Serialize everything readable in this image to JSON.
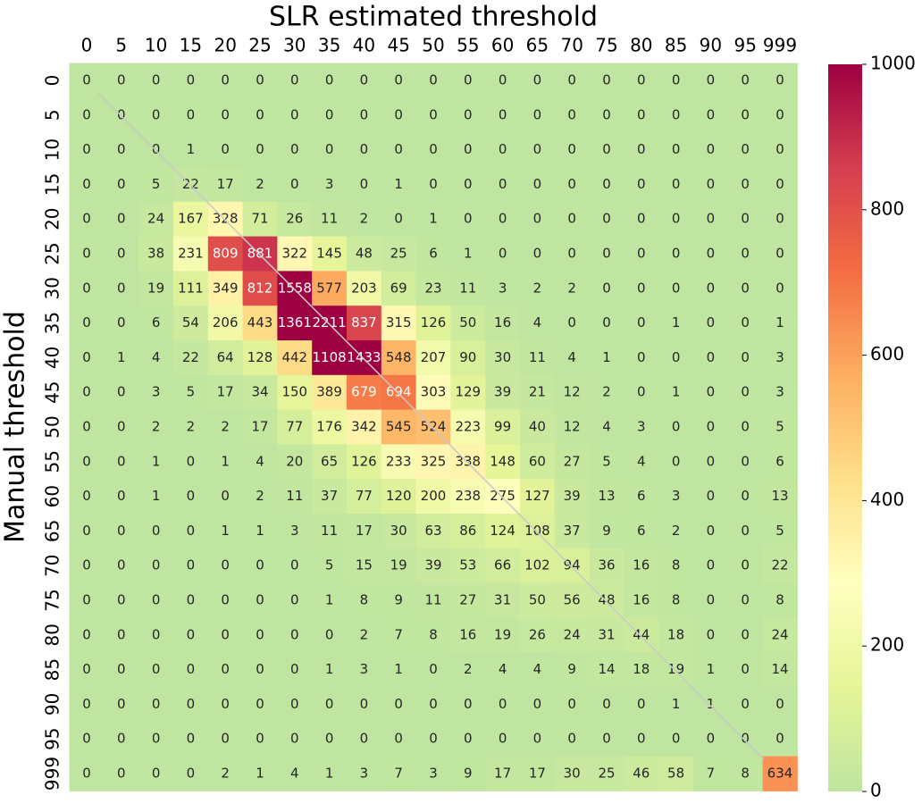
{
  "chart_data": {
    "type": "heatmap",
    "xlabel": "SLR estimated threshold",
    "ylabel": "Manual threshold",
    "x_categories": [
      "0",
      "5",
      "10",
      "15",
      "20",
      "25",
      "30",
      "35",
      "40",
      "45",
      "50",
      "55",
      "60",
      "65",
      "70",
      "75",
      "80",
      "85",
      "90",
      "95",
      "999"
    ],
    "y_categories": [
      "0",
      "5",
      "10",
      "15",
      "20",
      "25",
      "30",
      "35",
      "40",
      "45",
      "50",
      "55",
      "60",
      "65",
      "70",
      "75",
      "80",
      "85",
      "90",
      "95",
      "999"
    ],
    "values": [
      [
        0,
        0,
        0,
        0,
        0,
        0,
        0,
        0,
        0,
        0,
        0,
        0,
        0,
        0,
        0,
        0,
        0,
        0,
        0,
        0,
        0
      ],
      [
        0,
        0,
        0,
        0,
        0,
        0,
        0,
        0,
        0,
        0,
        0,
        0,
        0,
        0,
        0,
        0,
        0,
        0,
        0,
        0,
        0
      ],
      [
        0,
        0,
        0,
        1,
        0,
        0,
        0,
        0,
        0,
        0,
        0,
        0,
        0,
        0,
        0,
        0,
        0,
        0,
        0,
        0,
        0
      ],
      [
        0,
        0,
        5,
        22,
        17,
        2,
        0,
        3,
        0,
        1,
        0,
        0,
        0,
        0,
        0,
        0,
        0,
        0,
        0,
        0,
        0
      ],
      [
        0,
        0,
        24,
        167,
        328,
        71,
        26,
        11,
        2,
        0,
        1,
        0,
        0,
        0,
        0,
        0,
        0,
        0,
        0,
        0,
        0
      ],
      [
        0,
        0,
        38,
        231,
        809,
        881,
        322,
        145,
        48,
        25,
        6,
        1,
        0,
        0,
        0,
        0,
        0,
        0,
        0,
        0,
        0
      ],
      [
        0,
        0,
        19,
        111,
        349,
        812,
        1558,
        577,
        203,
        69,
        23,
        11,
        3,
        2,
        2,
        0,
        0,
        0,
        0,
        0,
        0
      ],
      [
        0,
        0,
        6,
        54,
        206,
        443,
        1361,
        2211,
        837,
        315,
        126,
        50,
        16,
        4,
        0,
        0,
        0,
        1,
        0,
        0,
        1
      ],
      [
        0,
        1,
        4,
        22,
        64,
        128,
        442,
        1108,
        1433,
        548,
        207,
        90,
        30,
        11,
        4,
        1,
        0,
        0,
        0,
        0,
        3
      ],
      [
        0,
        0,
        3,
        5,
        17,
        34,
        150,
        389,
        679,
        694,
        303,
        129,
        39,
        21,
        12,
        2,
        0,
        1,
        0,
        0,
        3
      ],
      [
        0,
        0,
        2,
        2,
        2,
        17,
        77,
        176,
        342,
        545,
        524,
        223,
        99,
        40,
        12,
        4,
        3,
        0,
        0,
        0,
        5
      ],
      [
        0,
        0,
        1,
        0,
        1,
        4,
        20,
        65,
        126,
        233,
        325,
        338,
        148,
        60,
        27,
        5,
        4,
        0,
        0,
        0,
        6
      ],
      [
        0,
        0,
        1,
        0,
        0,
        2,
        11,
        37,
        77,
        120,
        200,
        238,
        275,
        127,
        39,
        13,
        6,
        3,
        0,
        0,
        13
      ],
      [
        0,
        0,
        0,
        0,
        1,
        1,
        3,
        11,
        17,
        30,
        63,
        86,
        124,
        108,
        37,
        9,
        6,
        2,
        0,
        0,
        5
      ],
      [
        0,
        0,
        0,
        0,
        0,
        0,
        0,
        5,
        15,
        19,
        39,
        53,
        66,
        102,
        94,
        36,
        16,
        8,
        0,
        0,
        22
      ],
      [
        0,
        0,
        0,
        0,
        0,
        0,
        0,
        1,
        8,
        9,
        11,
        27,
        31,
        50,
        56,
        48,
        16,
        8,
        0,
        0,
        8
      ],
      [
        0,
        0,
        0,
        0,
        0,
        0,
        0,
        0,
        2,
        7,
        8,
        16,
        19,
        26,
        24,
        31,
        44,
        18,
        0,
        0,
        24
      ],
      [
        0,
        0,
        0,
        0,
        0,
        0,
        0,
        1,
        3,
        1,
        0,
        2,
        4,
        4,
        9,
        14,
        18,
        19,
        1,
        0,
        14
      ],
      [
        0,
        0,
        0,
        0,
        0,
        0,
        0,
        0,
        0,
        0,
        0,
        0,
        0,
        0,
        0,
        0,
        0,
        1,
        1,
        0,
        0
      ],
      [
        0,
        0,
        0,
        0,
        0,
        0,
        0,
        0,
        0,
        0,
        0,
        0,
        0,
        0,
        0,
        0,
        0,
        0,
        0,
        0,
        0
      ],
      [
        0,
        0,
        0,
        0,
        2,
        1,
        4,
        1,
        3,
        7,
        3,
        9,
        17,
        17,
        30,
        25,
        46,
        58,
        7,
        8,
        634
      ]
    ],
    "zlim": [
      0,
      1000
    ],
    "zticks": [
      0,
      200,
      400,
      600,
      800,
      1000
    ],
    "colormap": [
      "#bfe5a0",
      "#e6f598",
      "#ffffbf",
      "#fee08b",
      "#fdae61",
      "#f46d43",
      "#d53e4f",
      "#9e0142"
    ]
  }
}
